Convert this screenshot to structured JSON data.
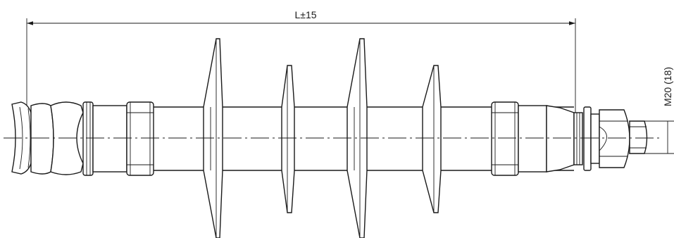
{
  "labels": {
    "length_dimension": "L±15",
    "thread_dimension": "M20 (18)"
  }
}
